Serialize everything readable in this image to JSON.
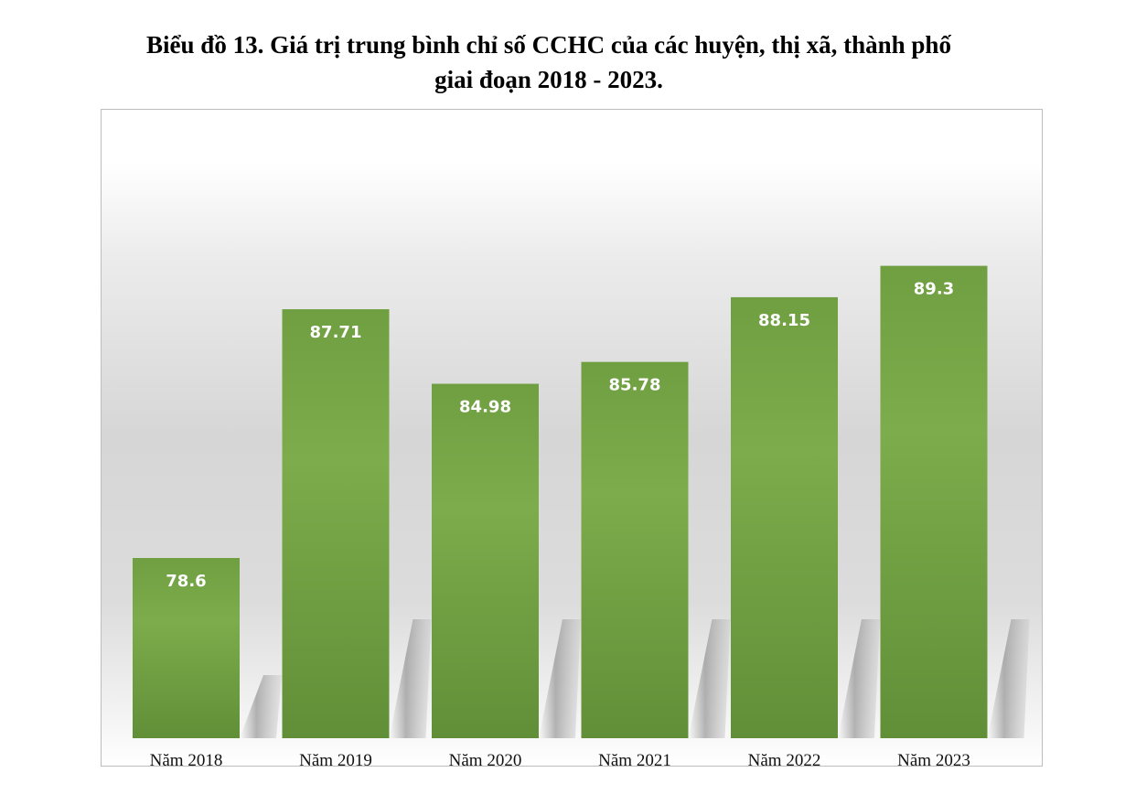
{
  "chart_data": {
    "type": "bar",
    "title_line1": "Biểu đồ 13. Giá trị trung bình chỉ số CCHC của các huyện, thị xã, thành phố",
    "title_line2": "giai đoạn 2018 - 2023.",
    "categories": [
      "Năm 2018",
      "Năm 2019",
      "Năm 2020",
      "Năm 2021",
      "Năm 2022",
      "Năm 2023"
    ],
    "values": [
      78.6,
      87.71,
      84.98,
      85.78,
      88.15,
      89.3
    ],
    "data_labels": [
      "78.6",
      "87.71",
      "84.98",
      "85.78",
      "88.15",
      "89.3"
    ],
    "ylim": [
      72,
      92
    ],
    "grid": false,
    "bar_color": "#7aaa49",
    "bar_color_dark": "#5e8a36"
  }
}
